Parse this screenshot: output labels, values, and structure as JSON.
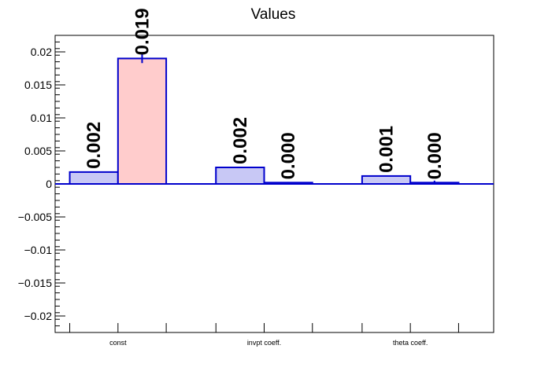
{
  "chart_data": {
    "type": "bar",
    "title": "Values",
    "xlabel": "",
    "ylabel": "",
    "categories": [
      "const",
      "invpt coeff.",
      "theta coeff."
    ],
    "ylim": [
      -0.0225,
      0.0225
    ],
    "y_ticks": [
      -0.02,
      -0.015,
      -0.01,
      -0.005,
      0,
      0.005,
      0.01,
      0.015,
      0.02
    ],
    "y_tick_labels": [
      "−0.02",
      "−0.015",
      "−0.01",
      "−0.005",
      "0",
      "0.005",
      "0.01",
      "0.015",
      "0.02"
    ],
    "series": [
      {
        "values": [
          0.0018,
          0.0025,
          0.0012
        ],
        "errors": [
          0.0,
          0.0,
          0.0
        ],
        "labels": [
          "0.002",
          "0.002",
          "0.001"
        ],
        "fill": "#c8c8f5",
        "stroke": "#0000cc"
      },
      {
        "values": [
          0.019,
          0.0002,
          0.0002
        ],
        "errors": [
          0.0007,
          0.0001,
          0.0003
        ],
        "labels": [
          "0.019",
          "0.000",
          "0.000"
        ],
        "fill": "#ffcccc",
        "stroke": "#0000cc"
      }
    ],
    "grid": false,
    "colors": {
      "axis": "#000000",
      "bar_stroke": "#0000cc",
      "zero_line": "#0000cc"
    }
  }
}
